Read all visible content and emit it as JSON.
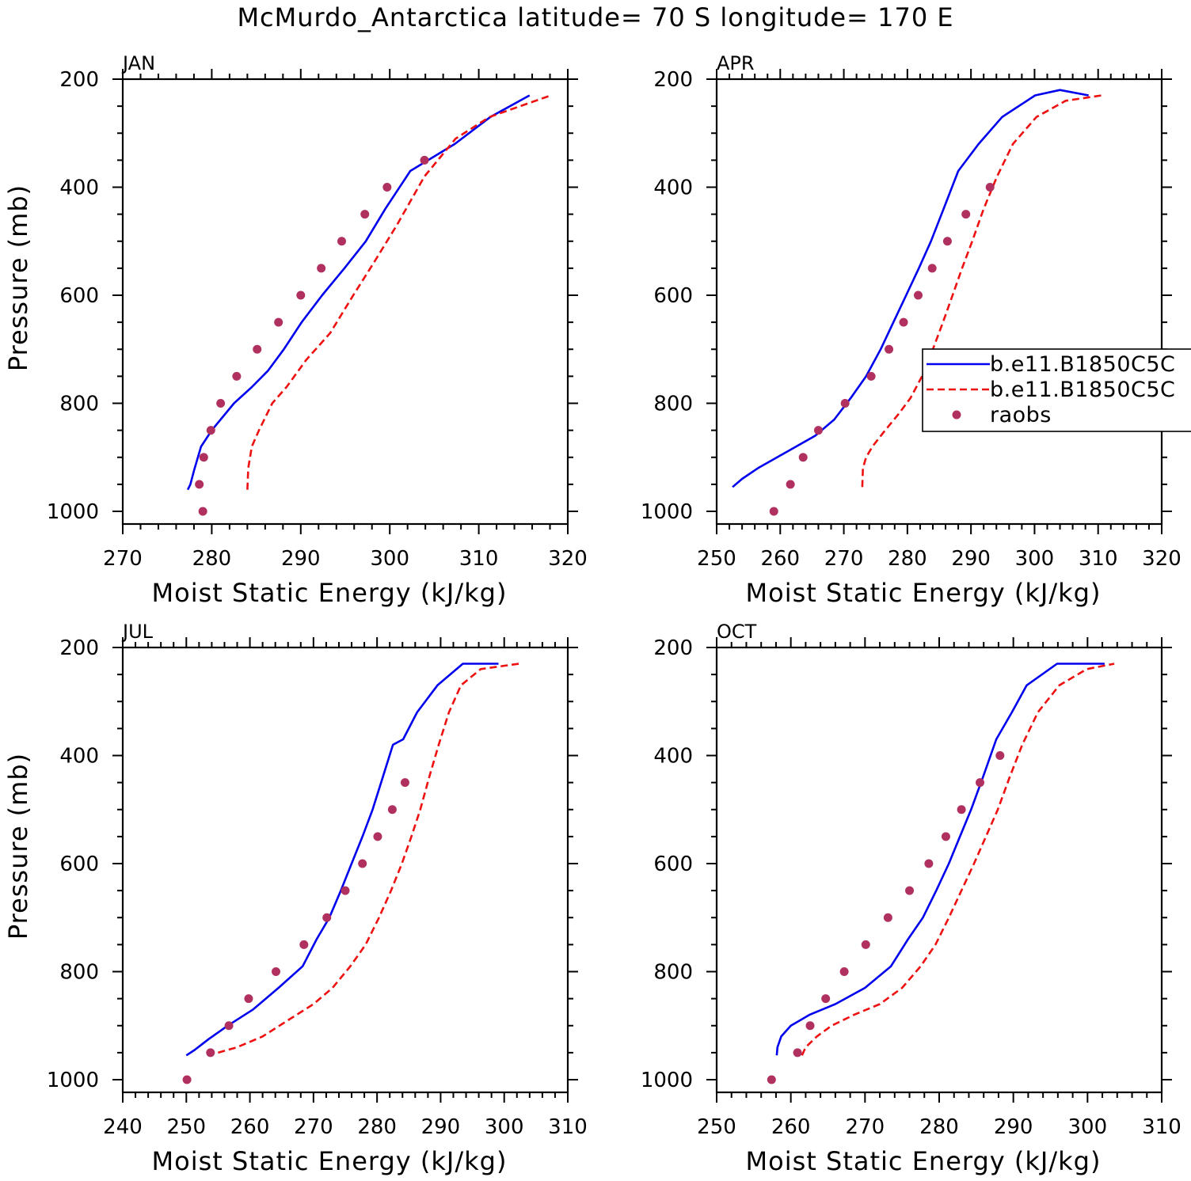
{
  "title": "McMurdo_Antarctica  latitude= 70 S longitude= 170 E",
  "colors": {
    "model_a": "#0000ee",
    "model_b": "#ee1111",
    "raobs": "#b03060",
    "axis": "#000000"
  },
  "legend": {
    "entries": [
      {
        "label": "b.e11.B1850C5C",
        "style": "solid",
        "color": "#0000ee"
      },
      {
        "label": "b.e11.B1850C5C",
        "style": "dashed",
        "color": "#ee1111"
      },
      {
        "label": "raobs",
        "style": "marker",
        "color": "#b03060"
      }
    ]
  },
  "chart_data": [
    {
      "type": "line",
      "title": "JAN",
      "xlabel": "Moist Static Energy (kJ/kg)",
      "ylabel": "Pressure (mb)",
      "xlim": [
        270,
        320
      ],
      "ylim": [
        1000,
        200
      ],
      "xticks": [
        270,
        280,
        290,
        300,
        310,
        320
      ],
      "yticks": [
        200,
        400,
        600,
        800,
        1000
      ],
      "series": [
        {
          "name": "b.e11.B1850C5C",
          "style": "solid",
          "x": [
            277.3,
            277.6,
            278.0,
            278.8,
            280.0,
            282.5,
            284.5,
            286.3,
            288.1,
            290.1,
            292.4,
            294.9,
            297.3,
            299.5,
            302.3,
            307.3,
            311.3,
            315.7
          ],
          "y": [
            960,
            950,
            925,
            880,
            850,
            800,
            770,
            740,
            700,
            650,
            600,
            550,
            500,
            440,
            370,
            320,
            270,
            230
          ]
        },
        {
          "name": "b.e11.B1850C5C",
          "style": "dashed",
          "x": [
            284.0,
            284.1,
            284.5,
            285.3,
            286.8,
            288.4,
            290.6,
            293.3,
            295.9,
            298.2,
            300.8,
            303.9,
            307.4,
            311.2,
            318.1
          ],
          "y": [
            960,
            920,
            880,
            850,
            800,
            770,
            720,
            670,
            600,
            540,
            470,
            380,
            310,
            270,
            230
          ]
        },
        {
          "name": "raobs",
          "style": "marker",
          "x": [
            279.0,
            278.6,
            279.1,
            279.9,
            281.0,
            282.8,
            285.1,
            287.5,
            290.0,
            292.3,
            294.6,
            297.2,
            299.7,
            303.9
          ],
          "y": [
            1000,
            950,
            900,
            850,
            800,
            750,
            700,
            650,
            600,
            550,
            500,
            450,
            400,
            350
          ]
        }
      ]
    },
    {
      "type": "line",
      "title": "APR",
      "xlabel": "Moist Static Energy (kJ/kg)",
      "ylabel": "Pressure (mb)",
      "xlim": [
        250,
        320
      ],
      "ylim": [
        1000,
        200
      ],
      "xticks": [
        250,
        260,
        270,
        280,
        290,
        300,
        310,
        320
      ],
      "yticks": [
        200,
        400,
        600,
        800,
        1000
      ],
      "series": [
        {
          "name": "b.e11.B1850C5C",
          "style": "solid",
          "x": [
            252.5,
            254.0,
            256.5,
            259.5,
            262.5,
            265.5,
            268.5,
            271.1,
            273.5,
            275.8,
            277.8,
            279.8,
            281.8,
            283.7,
            285.7,
            288.0,
            291.2,
            294.9,
            300.1,
            304.0,
            308.5
          ],
          "y": [
            955,
            940,
            920,
            900,
            880,
            860,
            830,
            790,
            750,
            700,
            650,
            600,
            550,
            500,
            440,
            370,
            320,
            270,
            230,
            220,
            230
          ]
        },
        {
          "name": "b.e11.B1850C5C",
          "style": "dashed",
          "x": [
            272.9,
            273.0,
            273.5,
            274.5,
            276.5,
            278.6,
            280.5,
            282.3,
            284.0,
            285.6,
            287.1,
            288.6,
            290.2,
            292.0,
            294.1,
            296.6,
            300.3,
            304.9,
            310.6
          ],
          "y": [
            955,
            920,
            900,
            880,
            850,
            820,
            790,
            750,
            700,
            650,
            600,
            550,
            500,
            440,
            380,
            320,
            270,
            240,
            230
          ]
        },
        {
          "name": "raobs",
          "style": "marker",
          "x": [
            259.0,
            261.6,
            263.6,
            266.0,
            270.2,
            274.3,
            277.1,
            279.4,
            281.7,
            283.9,
            286.3,
            289.2,
            293.0
          ],
          "y": [
            1000,
            950,
            900,
            850,
            800,
            750,
            700,
            650,
            600,
            550,
            500,
            450,
            400
          ]
        }
      ]
    },
    {
      "type": "line",
      "title": "JUL",
      "xlabel": "Moist Static Energy (kJ/kg)",
      "ylabel": "Pressure (mb)",
      "xlim": [
        240,
        310
      ],
      "ylim": [
        1000,
        200
      ],
      "xticks": [
        240,
        250,
        260,
        270,
        280,
        290,
        300,
        310
      ],
      "yticks": [
        200,
        400,
        600,
        800,
        1000
      ],
      "series": [
        {
          "name": "b.e11.B1850C5C",
          "style": "solid",
          "x": [
            250.0,
            251.3,
            253.5,
            256.5,
            260.5,
            264.5,
            268.3,
            270.5,
            272.5,
            274.3,
            276.0,
            277.7,
            279.3,
            280.9,
            282.5,
            284.1,
            286.3,
            289.5,
            293.5,
            299.1
          ],
          "y": [
            955,
            945,
            925,
            900,
            870,
            830,
            790,
            740,
            700,
            650,
            600,
            550,
            500,
            440,
            380,
            370,
            320,
            270,
            230,
            230
          ]
        },
        {
          "name": "b.e11.B1850C5C",
          "style": "dashed",
          "x": [
            255.0,
            258.0,
            262.0,
            266.0,
            270.0,
            273.0,
            275.8,
            278.2,
            280.3,
            282.2,
            283.9,
            285.4,
            286.8,
            288.2,
            289.7,
            291.3,
            293.2,
            296.3,
            302.3
          ],
          "y": [
            950,
            940,
            920,
            890,
            860,
            830,
            790,
            750,
            700,
            650,
            600,
            550,
            500,
            440,
            380,
            320,
            270,
            240,
            230
          ]
        },
        {
          "name": "raobs",
          "style": "marker",
          "x": [
            250.1,
            253.8,
            256.7,
            259.8,
            264.1,
            268.5,
            272.1,
            275.0,
            277.7,
            280.1,
            282.4,
            284.4
          ],
          "y": [
            1000,
            950,
            900,
            850,
            800,
            750,
            700,
            650,
            600,
            550,
            500,
            450
          ]
        }
      ]
    },
    {
      "type": "line",
      "title": "OCT",
      "xlabel": "Moist Static Energy (kJ/kg)",
      "ylabel": "Pressure (mb)",
      "xlim": [
        250,
        310
      ],
      "ylim": [
        1000,
        200
      ],
      "xticks": [
        250,
        260,
        270,
        280,
        290,
        300,
        310
      ],
      "yticks": [
        200,
        400,
        600,
        800,
        1000
      ],
      "series": [
        {
          "name": "b.e11.B1850C5C",
          "style": "solid",
          "x": [
            258.1,
            258.2,
            258.7,
            260.0,
            262.5,
            266.0,
            270.0,
            273.5,
            275.8,
            277.8,
            279.6,
            281.3,
            282.8,
            284.3,
            285.9,
            287.7,
            289.8,
            291.8,
            295.9,
            302.3
          ],
          "y": [
            955,
            940,
            920,
            900,
            880,
            860,
            830,
            790,
            740,
            700,
            650,
            600,
            550,
            500,
            440,
            370,
            320,
            270,
            230,
            230
          ]
        },
        {
          "name": "b.e11.B1850C5C",
          "style": "dashed",
          "x": [
            261.5,
            262.0,
            263.5,
            265.5,
            268.5,
            272.0,
            275.0,
            277.5,
            279.5,
            281.3,
            283.0,
            284.7,
            286.3,
            287.9,
            289.5,
            291.2,
            293.3,
            296.2,
            299.9,
            303.6
          ],
          "y": [
            955,
            940,
            920,
            900,
            880,
            860,
            830,
            790,
            750,
            700,
            650,
            600,
            550,
            500,
            440,
            380,
            320,
            270,
            240,
            230
          ]
        },
        {
          "name": "raobs",
          "style": "marker",
          "x": [
            257.4,
            260.9,
            262.6,
            264.7,
            267.2,
            270.1,
            273.1,
            276.0,
            278.6,
            280.9,
            283.0,
            285.5,
            288.2
          ],
          "y": [
            1000,
            950,
            900,
            850,
            800,
            750,
            700,
            650,
            600,
            550,
            500,
            450,
            400
          ]
        }
      ]
    }
  ]
}
